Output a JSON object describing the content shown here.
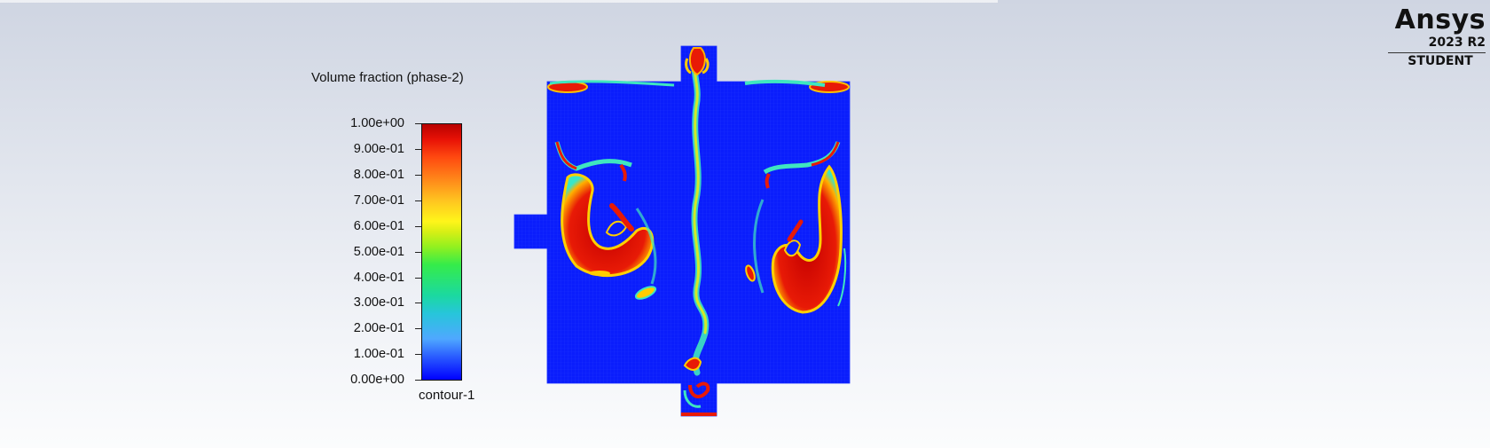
{
  "legend": {
    "title": "Volume fraction (phase-2)",
    "footer": "contour-1",
    "ticks": [
      "1.00e+00",
      "9.00e-01",
      "8.00e-01",
      "7.00e-01",
      "6.00e-01",
      "5.00e-01",
      "4.00e-01",
      "3.00e-01",
      "2.00e-01",
      "1.00e-01",
      "0.00e+00"
    ],
    "min": 0,
    "max": 1,
    "colormap": [
      "#0000ff",
      "#00c8ff",
      "#00ff80",
      "#c8ff00",
      "#ffc800",
      "#ff3c00",
      "#b80000"
    ]
  },
  "logo": {
    "brand": "Ansys",
    "version": "2023 R2",
    "edition": "STUDENT"
  },
  "colors": {
    "background_top": "#cfd5e2",
    "background_bottom": "#fbfcfd",
    "fluid_low": "#0a1dfc",
    "fluid_high": "#c80000"
  }
}
